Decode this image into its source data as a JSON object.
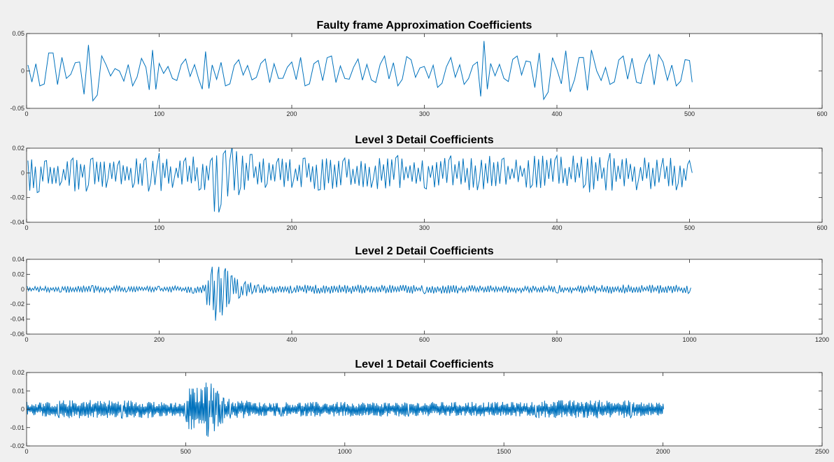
{
  "figure": {
    "background": "#f0f0f0",
    "axes_background": "#ffffff",
    "line_color": "#0072bd"
  },
  "chart_data": [
    {
      "type": "line",
      "title": "Faulty frame Approximation Coefficients",
      "xlabel": "",
      "ylabel": "",
      "xlim": [
        0,
        600
      ],
      "ylim": [
        -0.05,
        0.05
      ],
      "xticks": [
        0,
        100,
        200,
        300,
        400,
        500,
        600
      ],
      "yticks": [
        -0.05,
        0,
        0.05
      ],
      "xtick_labels": [
        "0",
        "100",
        "200",
        "300",
        "400",
        "500",
        "600"
      ],
      "ytick_labels": [
        "-0.05",
        "0",
        "0.05"
      ],
      "grid": false,
      "series": [
        {
          "x": [
            1,
            10,
            20,
            30,
            40,
            50,
            60,
            70,
            80,
            90,
            95,
            100,
            110,
            120,
            130,
            135,
            140,
            150,
            160,
            170,
            180,
            190,
            200,
            210,
            220,
            230,
            240,
            250,
            260,
            270,
            280,
            290,
            300,
            310,
            320,
            330,
            340,
            345,
            350,
            360,
            370,
            380,
            390,
            400,
            410,
            420,
            426,
            430,
            440,
            450,
            460,
            470,
            480,
            490,
            500,
            502
          ],
          "y": [
            0.008,
            -0.02,
            0.024,
            -0.01,
            0.012,
            -0.04,
            0.008,
            0.0,
            -0.02,
            0.005,
            0.028,
            0.01,
            -0.01,
            0.016,
            -0.012,
            0.026,
            0.008,
            -0.02,
            0.015,
            -0.012,
            0.016,
            -0.01,
            0.012,
            -0.02,
            0.014,
            0.02,
            -0.01,
            0.016,
            -0.012,
            0.02,
            -0.02,
            0.015,
            0.006,
            -0.022,
            0.018,
            -0.018,
            0.012,
            0.04,
            0.01,
            -0.01,
            0.02,
            0.012,
            -0.038,
            0.002,
            -0.028,
            0.018,
            0.028,
            0.0,
            -0.018,
            0.02,
            -0.015,
            0.022,
            0.012,
            -0.02,
            0.014,
            -0.015
          ]
        }
      ]
    },
    {
      "type": "line",
      "title": "Level 3 Detail Coefficients",
      "xlabel": "",
      "ylabel": "",
      "xlim": [
        0,
        600
      ],
      "ylim": [
        -0.04,
        0.02
      ],
      "xticks": [
        0,
        100,
        200,
        300,
        400,
        500,
        600
      ],
      "yticks": [
        -0.04,
        -0.02,
        0,
        0.02
      ],
      "xtick_labels": [
        "0",
        "100",
        "200",
        "300",
        "400",
        "500",
        "600"
      ],
      "ytick_labels": [
        "-0.04",
        "-0.02",
        "0",
        "0.02"
      ],
      "grid": false,
      "series": [
        {
          "x": [
            1,
            8,
            15,
            25,
            35,
            45,
            50,
            60,
            70,
            80,
            90,
            92,
            100,
            110,
            120,
            130,
            140,
            145,
            150,
            155,
            160,
            170,
            180,
            190,
            200,
            210,
            220,
            240,
            260,
            280,
            300,
            320,
            340,
            360,
            380,
            400,
            420,
            440,
            460,
            480,
            490,
            500,
            502
          ],
          "y": [
            0.01,
            -0.016,
            0.01,
            -0.01,
            0.012,
            -0.015,
            0.012,
            -0.012,
            0.01,
            -0.012,
            0.012,
            -0.015,
            0.016,
            -0.012,
            0.012,
            -0.014,
            0.012,
            -0.032,
            0.018,
            0.022,
            -0.018,
            0.015,
            -0.012,
            0.012,
            -0.012,
            0.012,
            -0.014,
            0.012,
            -0.012,
            0.014,
            -0.012,
            0.014,
            -0.014,
            0.012,
            -0.012,
            0.014,
            -0.012,
            0.016,
            -0.014,
            0.012,
            -0.014,
            0.01,
            0.0
          ]
        }
      ]
    },
    {
      "type": "line",
      "title": "Level 2 Detail Coefficients",
      "xlabel": "",
      "ylabel": "",
      "xlim": [
        0,
        1200
      ],
      "ylim": [
        -0.06,
        0.04
      ],
      "xticks": [
        0,
        200,
        400,
        600,
        800,
        1000,
        1200
      ],
      "yticks": [
        -0.06,
        -0.04,
        -0.02,
        0,
        0.02,
        0.04
      ],
      "xtick_labels": [
        "0",
        "200",
        "400",
        "600",
        "800",
        "1000",
        "1200"
      ],
      "ytick_labels": [
        "-0.06",
        "-0.04",
        "-0.02",
        "0",
        "0.02",
        "0.04"
      ],
      "grid": false,
      "series": [
        {
          "x": [
            1,
            50,
            100,
            150,
            200,
            250,
            270,
            280,
            285,
            290,
            295,
            300,
            305,
            310,
            320,
            330,
            340,
            350,
            400,
            500,
            600,
            700,
            800,
            900,
            1000,
            1002
          ],
          "y": [
            0.004,
            -0.004,
            0.005,
            -0.004,
            0.004,
            -0.005,
            0.006,
            0.03,
            -0.042,
            0.03,
            -0.035,
            0.028,
            -0.02,
            0.018,
            -0.012,
            0.01,
            -0.006,
            0.006,
            -0.005,
            0.006,
            -0.006,
            0.005,
            -0.005,
            0.006,
            -0.004,
            0.002
          ]
        }
      ]
    },
    {
      "type": "line",
      "title": "Level 1 Detail Coefficients",
      "xlabel": "",
      "ylabel": "",
      "xlim": [
        0,
        2500
      ],
      "ylim": [
        -0.02,
        0.02
      ],
      "xticks": [
        0,
        500,
        1000,
        1500,
        2000,
        2500
      ],
      "yticks": [
        -0.02,
        -0.01,
        0,
        0.01,
        0.02
      ],
      "xtick_labels": [
        "0",
        "500",
        "1000",
        "1500",
        "2000",
        "2500"
      ],
      "ytick_labels": [
        "-0.02",
        "-0.01",
        "0",
        "0.01",
        "0.02"
      ],
      "grid": false,
      "series": [
        {
          "x": [
            1,
            100,
            200,
            300,
            400,
            500,
            560,
            570,
            580,
            590,
            600,
            610,
            620,
            640,
            700,
            800,
            1000,
            1200,
            1400,
            1600,
            1800,
            1900,
            2000,
            2002
          ],
          "y": [
            0.004,
            -0.004,
            0.005,
            -0.005,
            0.004,
            -0.004,
            0.012,
            -0.015,
            0.014,
            -0.012,
            0.01,
            -0.008,
            0.006,
            -0.005,
            0.004,
            -0.004,
            0.004,
            -0.004,
            0.004,
            -0.004,
            0.005,
            -0.004,
            0.003,
            0.0
          ]
        }
      ]
    }
  ]
}
